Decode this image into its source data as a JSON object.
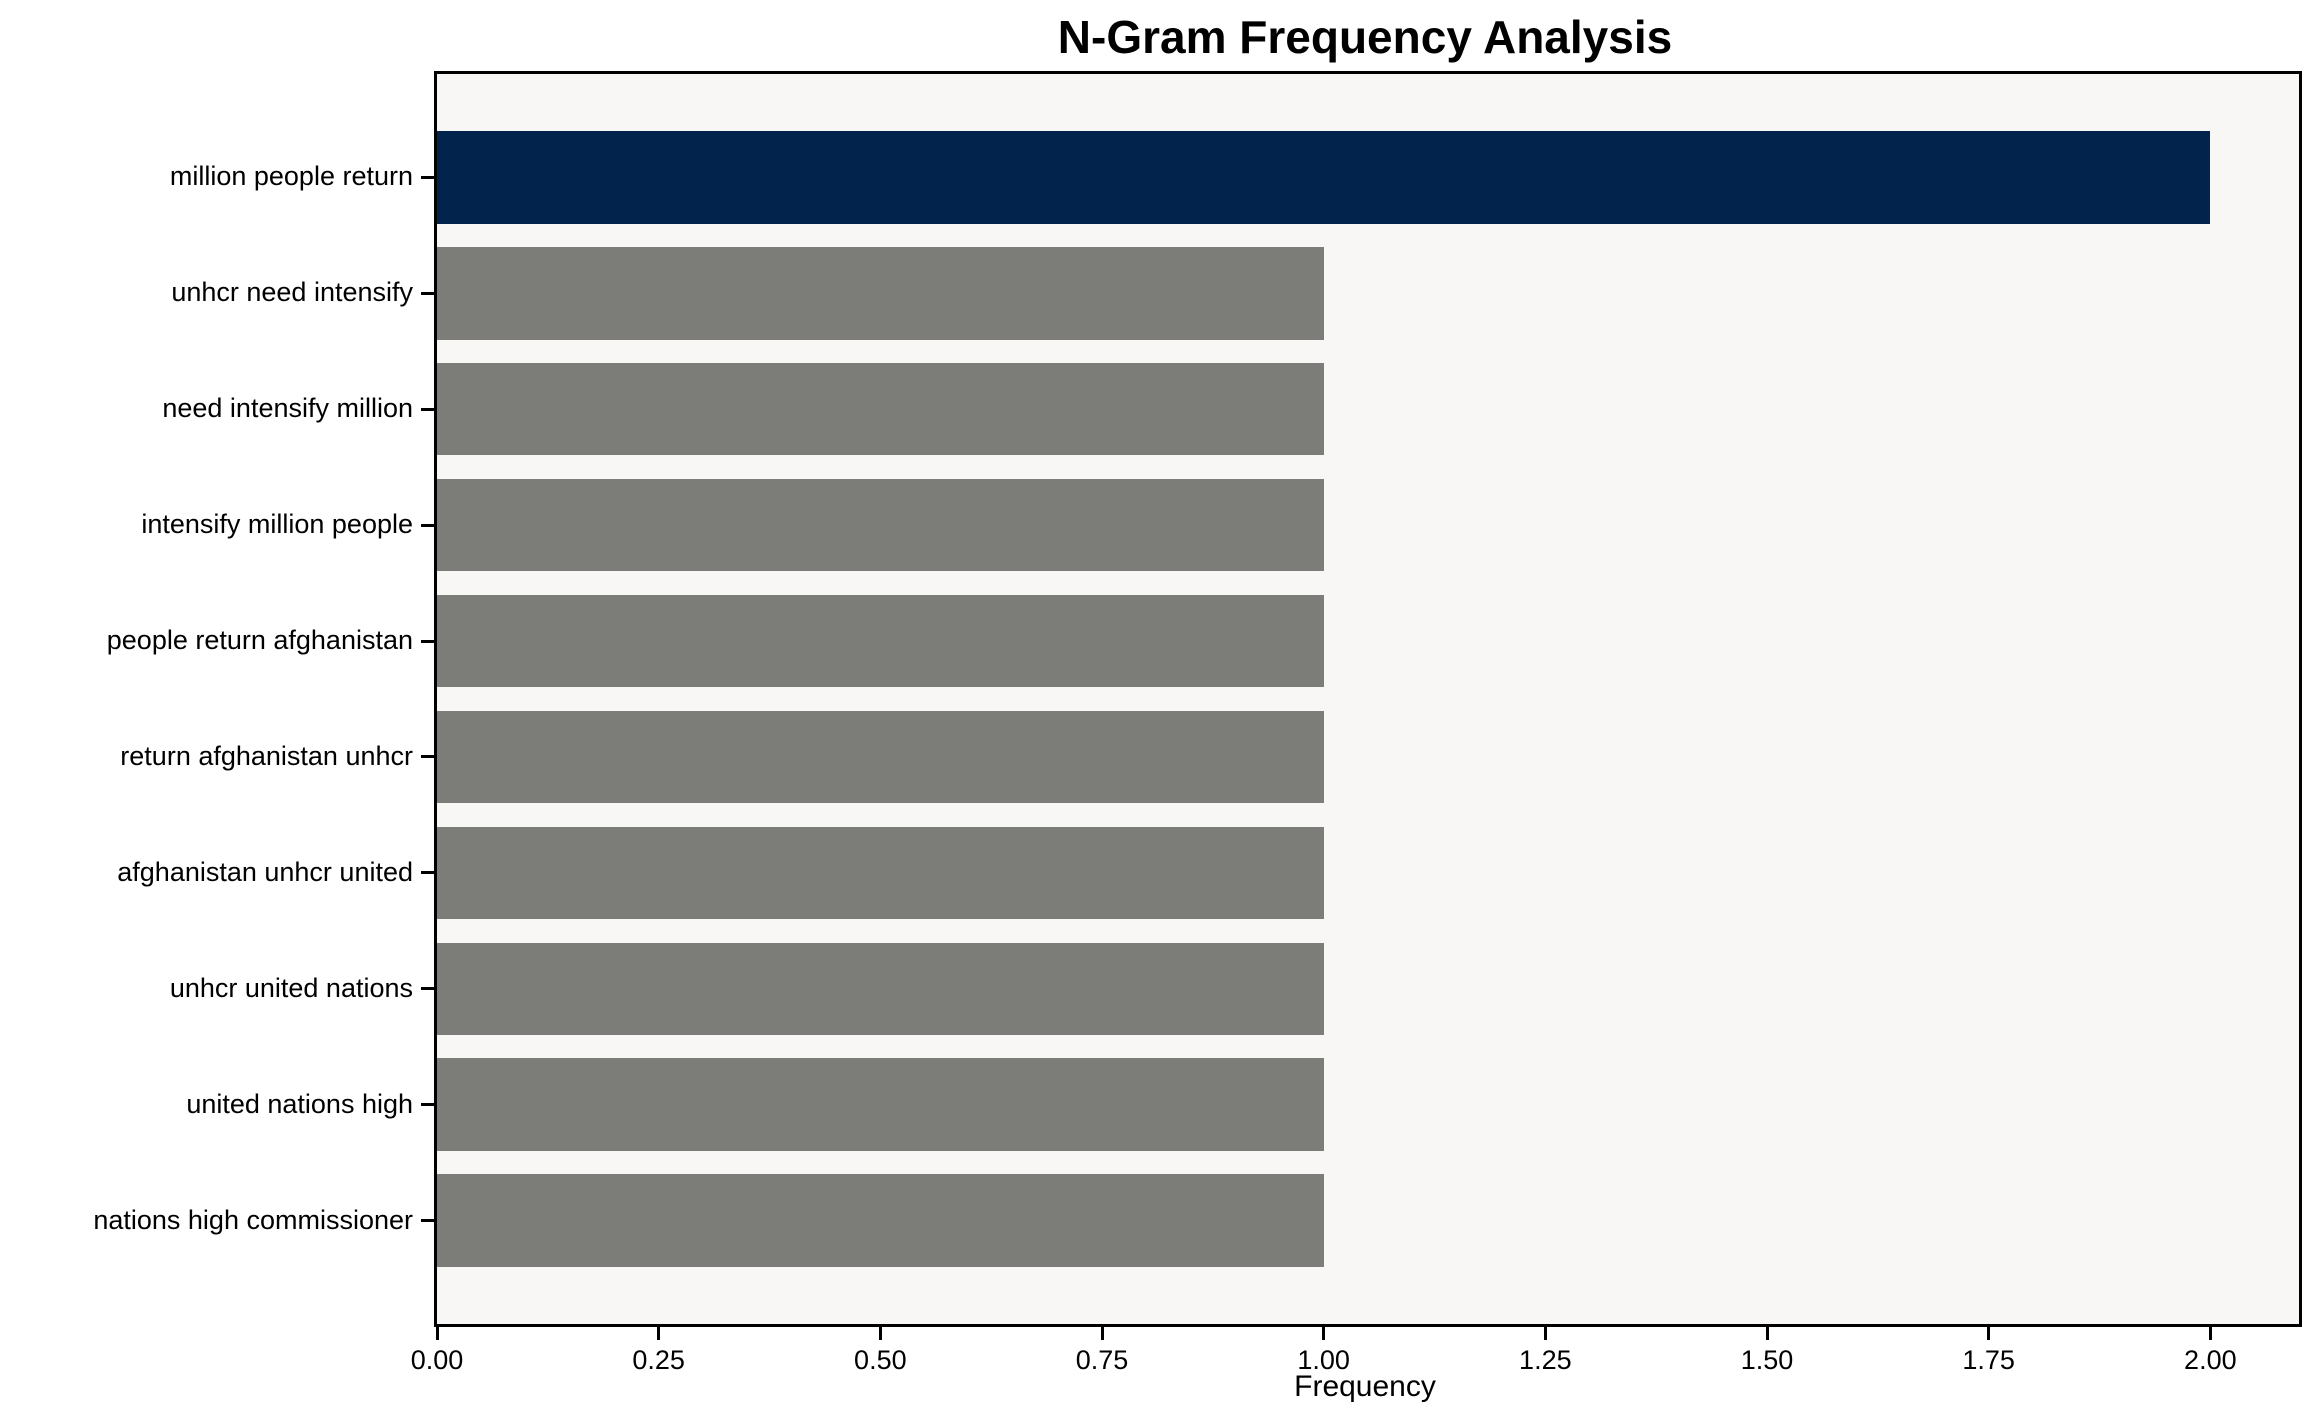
{
  "chart_data": {
    "type": "bar",
    "orientation": "horizontal",
    "title": "N-Gram Frequency Analysis",
    "xlabel": "Frequency",
    "ylabel": "",
    "categories": [
      "million people return",
      "unhcr need intensify",
      "need intensify million",
      "intensify million people",
      "people return afghanistan",
      "return afghanistan unhcr",
      "afghanistan unhcr united",
      "unhcr united nations",
      "united nations high",
      "nations high commissioner"
    ],
    "values": [
      2,
      1,
      1,
      1,
      1,
      1,
      1,
      1,
      1,
      1
    ],
    "bar_colors": [
      "#01234c",
      "#7c7c78",
      "#7c7c78",
      "#7c7c78",
      "#7c7c78",
      "#7c7c78",
      "#7c7c78",
      "#7c7c78",
      "#7c7c78",
      "#7c7c78"
    ],
    "xlim": [
      0,
      2.1
    ],
    "xticks": [
      0,
      0.25,
      0.5,
      0.75,
      1.0,
      1.25,
      1.5,
      1.75,
      2.0
    ],
    "xtick_labels": [
      "0.00",
      "0.25",
      "0.50",
      "0.75",
      "1.00",
      "1.25",
      "1.50",
      "1.75",
      "2.00"
    ],
    "grid": false,
    "legend": null,
    "colors": {
      "highlight_bar": "#01234c",
      "default_bar": "#7c7c78",
      "plot_background": "#f8f7f5",
      "figure_background": "#ffffff",
      "spine": "#000000",
      "text": "#000000"
    }
  }
}
